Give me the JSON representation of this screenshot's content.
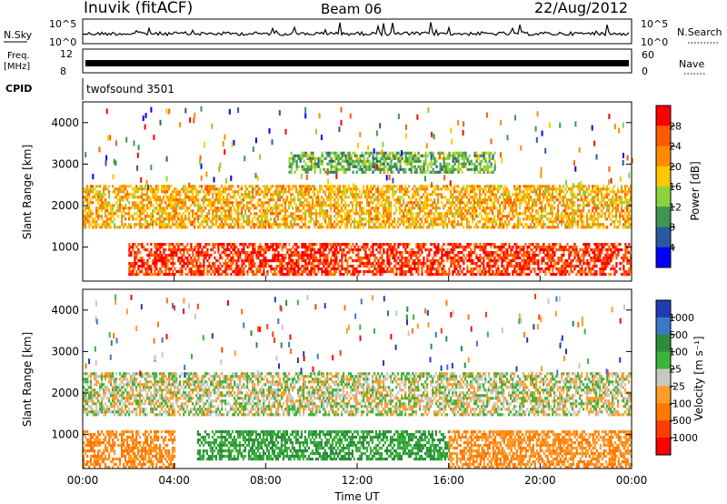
{
  "header": {
    "station": "Inuvik (fitACF)",
    "beam": "Beam 06",
    "date": "22/Aug/2012"
  },
  "strips": {
    "nsky_label": "N.Sky",
    "nsky_ticks": [
      "10^5",
      "10^0"
    ],
    "nsearch_label": "N.Search",
    "nsearch_ticks": [
      "10^5",
      "10^0"
    ],
    "freq_label_1": "Freq.",
    "freq_label_2": "[MHz]",
    "freq_ticks": [
      "12",
      "8"
    ],
    "nave_label": "Nave",
    "nave_ticks": [
      "60",
      "0"
    ],
    "cpid_label": "CPID",
    "cpid_value": "twofsound 3501"
  },
  "panels": {
    "ylabel": "Slant Range [km]",
    "yticks": [
      "4000",
      "3000",
      "2000",
      "1000"
    ],
    "xlabel": "Time UT",
    "xticks": [
      "00:00",
      "04:00",
      "08:00",
      "12:00",
      "16:00",
      "20:00",
      "00:00"
    ]
  },
  "power_scale": {
    "label": "Power [dB]",
    "ticks": [
      "28",
      "24",
      "20",
      "16",
      "12",
      "8",
      "4"
    ],
    "colors": [
      "#ff0000",
      "#ff5a00",
      "#ff8c00",
      "#ffc800",
      "#8cd23c",
      "#3c9650",
      "#285aa0",
      "#0000ff"
    ]
  },
  "velocity_scale": {
    "label": "Velocity [m s⁻¹]",
    "ticks": [
      "1000",
      "500",
      "100",
      "25",
      "-25",
      "-100",
      "-500",
      "-1000"
    ],
    "colors": [
      "#1e3cb4",
      "#3c78c8",
      "#2d8c3c",
      "#3cb43c",
      "#c8c8c0",
      "#ff9b28",
      "#ff7800",
      "#ff3c00",
      "#ff0000"
    ]
  },
  "chart_data": {
    "type": "heatmap",
    "x_range_ut_hours": [
      0,
      24
    ],
    "y_range_km": [
      180,
      4500
    ],
    "panels": [
      {
        "name": "Power",
        "units": "dB",
        "bands": [
          {
            "range_km": [
              350,
              1100
            ],
            "time_ut_hours": [
              2,
              24
            ],
            "level_db": 28
          },
          {
            "range_km": [
              1500,
              2500
            ],
            "time_ut_hours": [
              0,
              24
            ],
            "level_db": 20
          },
          {
            "range_km": [
              2800,
              3300
            ],
            "time_ut_hours": [
              9,
              18
            ],
            "level_db": 12
          }
        ]
      },
      {
        "name": "Velocity",
        "units": "m s-1",
        "bands": [
          {
            "range_km": [
              200,
              1100
            ],
            "time_ut_hours": [
              0,
              4
            ],
            "velocity": -100
          },
          {
            "range_km": [
              400,
              1100
            ],
            "time_ut_hours": [
              5,
              16
            ],
            "velocity": 100
          },
          {
            "range_km": [
              1500,
              2500
            ],
            "time_ut_hours": [
              0,
              24
            ],
            "velocity": 0
          },
          {
            "range_km": [
              200,
              1100
            ],
            "time_ut_hours": [
              16,
              24
            ],
            "velocity": -100
          }
        ]
      }
    ]
  }
}
